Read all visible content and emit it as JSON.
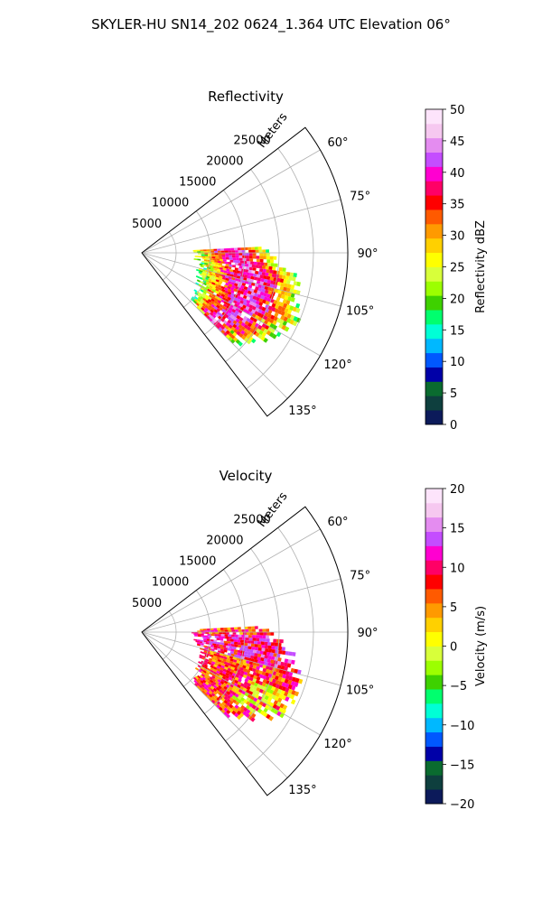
{
  "figure": {
    "suptitle": "SKYLER-HU  SN14_202  0624_1.364 UTC Elevation 06°"
  },
  "chart_data": [
    {
      "type": "heatmap",
      "subtype": "polar-sector",
      "title": "Reflectivity",
      "radial_axis_label": "Meters",
      "radial_ticks": [
        "5000",
        "10000",
        "15000",
        "20000",
        "25000"
      ],
      "radial_tick_values": [
        5000,
        10000,
        15000,
        20000,
        25000
      ],
      "rlim": [
        0,
        30000
      ],
      "theta_ticks": [
        "60°",
        "75°",
        "90°",
        "105°",
        "120°",
        "135°"
      ],
      "theta_tick_values": [
        60,
        75,
        90,
        105,
        120,
        135
      ],
      "theta_range": [
        52.5,
        142.5
      ],
      "grid": true,
      "colorbar": {
        "label": "Reflectivity dBZ",
        "ticks": [
          "0",
          "5",
          "10",
          "15",
          "20",
          "25",
          "30",
          "35",
          "40",
          "45",
          "50"
        ],
        "range": [
          0,
          50
        ],
        "colors": [
          "#0c1a5a",
          "#0e3f3e",
          "#0a6b2f",
          "#0000a8",
          "#0058ff",
          "#00b8ff",
          "#00ffd6",
          "#00ff6e",
          "#3ed100",
          "#9cff00",
          "#d8ff3a",
          "#ffff00",
          "#ffd000",
          "#ff9a00",
          "#ff5a00",
          "#ff0000",
          "#ff0066",
          "#ff00d0",
          "#c44dff",
          "#e48cf0",
          "#f6c8f0",
          "#fde4fb"
        ]
      },
      "echo_summary": {
        "max_range_m": 24000,
        "azimuth_extent": [
          87,
          135
        ]
      }
    },
    {
      "type": "heatmap",
      "subtype": "polar-sector",
      "title": "Velocity",
      "radial_axis_label": "Meters",
      "radial_ticks": [
        "5000",
        "10000",
        "15000",
        "20000",
        "25000"
      ],
      "radial_tick_values": [
        5000,
        10000,
        15000,
        20000,
        25000
      ],
      "rlim": [
        0,
        30000
      ],
      "theta_ticks": [
        "60°",
        "75°",
        "90°",
        "105°",
        "120°",
        "135°"
      ],
      "theta_tick_values": [
        60,
        75,
        90,
        105,
        120,
        135
      ],
      "theta_range": [
        52.5,
        142.5
      ],
      "grid": true,
      "colorbar": {
        "label": "Velocity (m/s)",
        "ticks": [
          "−20",
          "−15",
          "−10",
          "−5",
          "0",
          "5",
          "10",
          "15",
          "20"
        ],
        "range": [
          -20,
          20
        ],
        "colors": [
          "#0c1a5a",
          "#0e3f3e",
          "#0a6b2f",
          "#0000a8",
          "#0058ff",
          "#00b8ff",
          "#00ffd6",
          "#00ff6e",
          "#3ed100",
          "#9cff00",
          "#d8ff3a",
          "#ffff00",
          "#ffd000",
          "#ff9a00",
          "#ff5a00",
          "#ff0000",
          "#ff0066",
          "#ff00d0",
          "#c44dff",
          "#e48cf0",
          "#f6c8f0",
          "#fde4fb"
        ]
      },
      "echo_summary": {
        "max_range_m": 24000,
        "azimuth_extent": [
          87,
          135
        ]
      }
    }
  ]
}
